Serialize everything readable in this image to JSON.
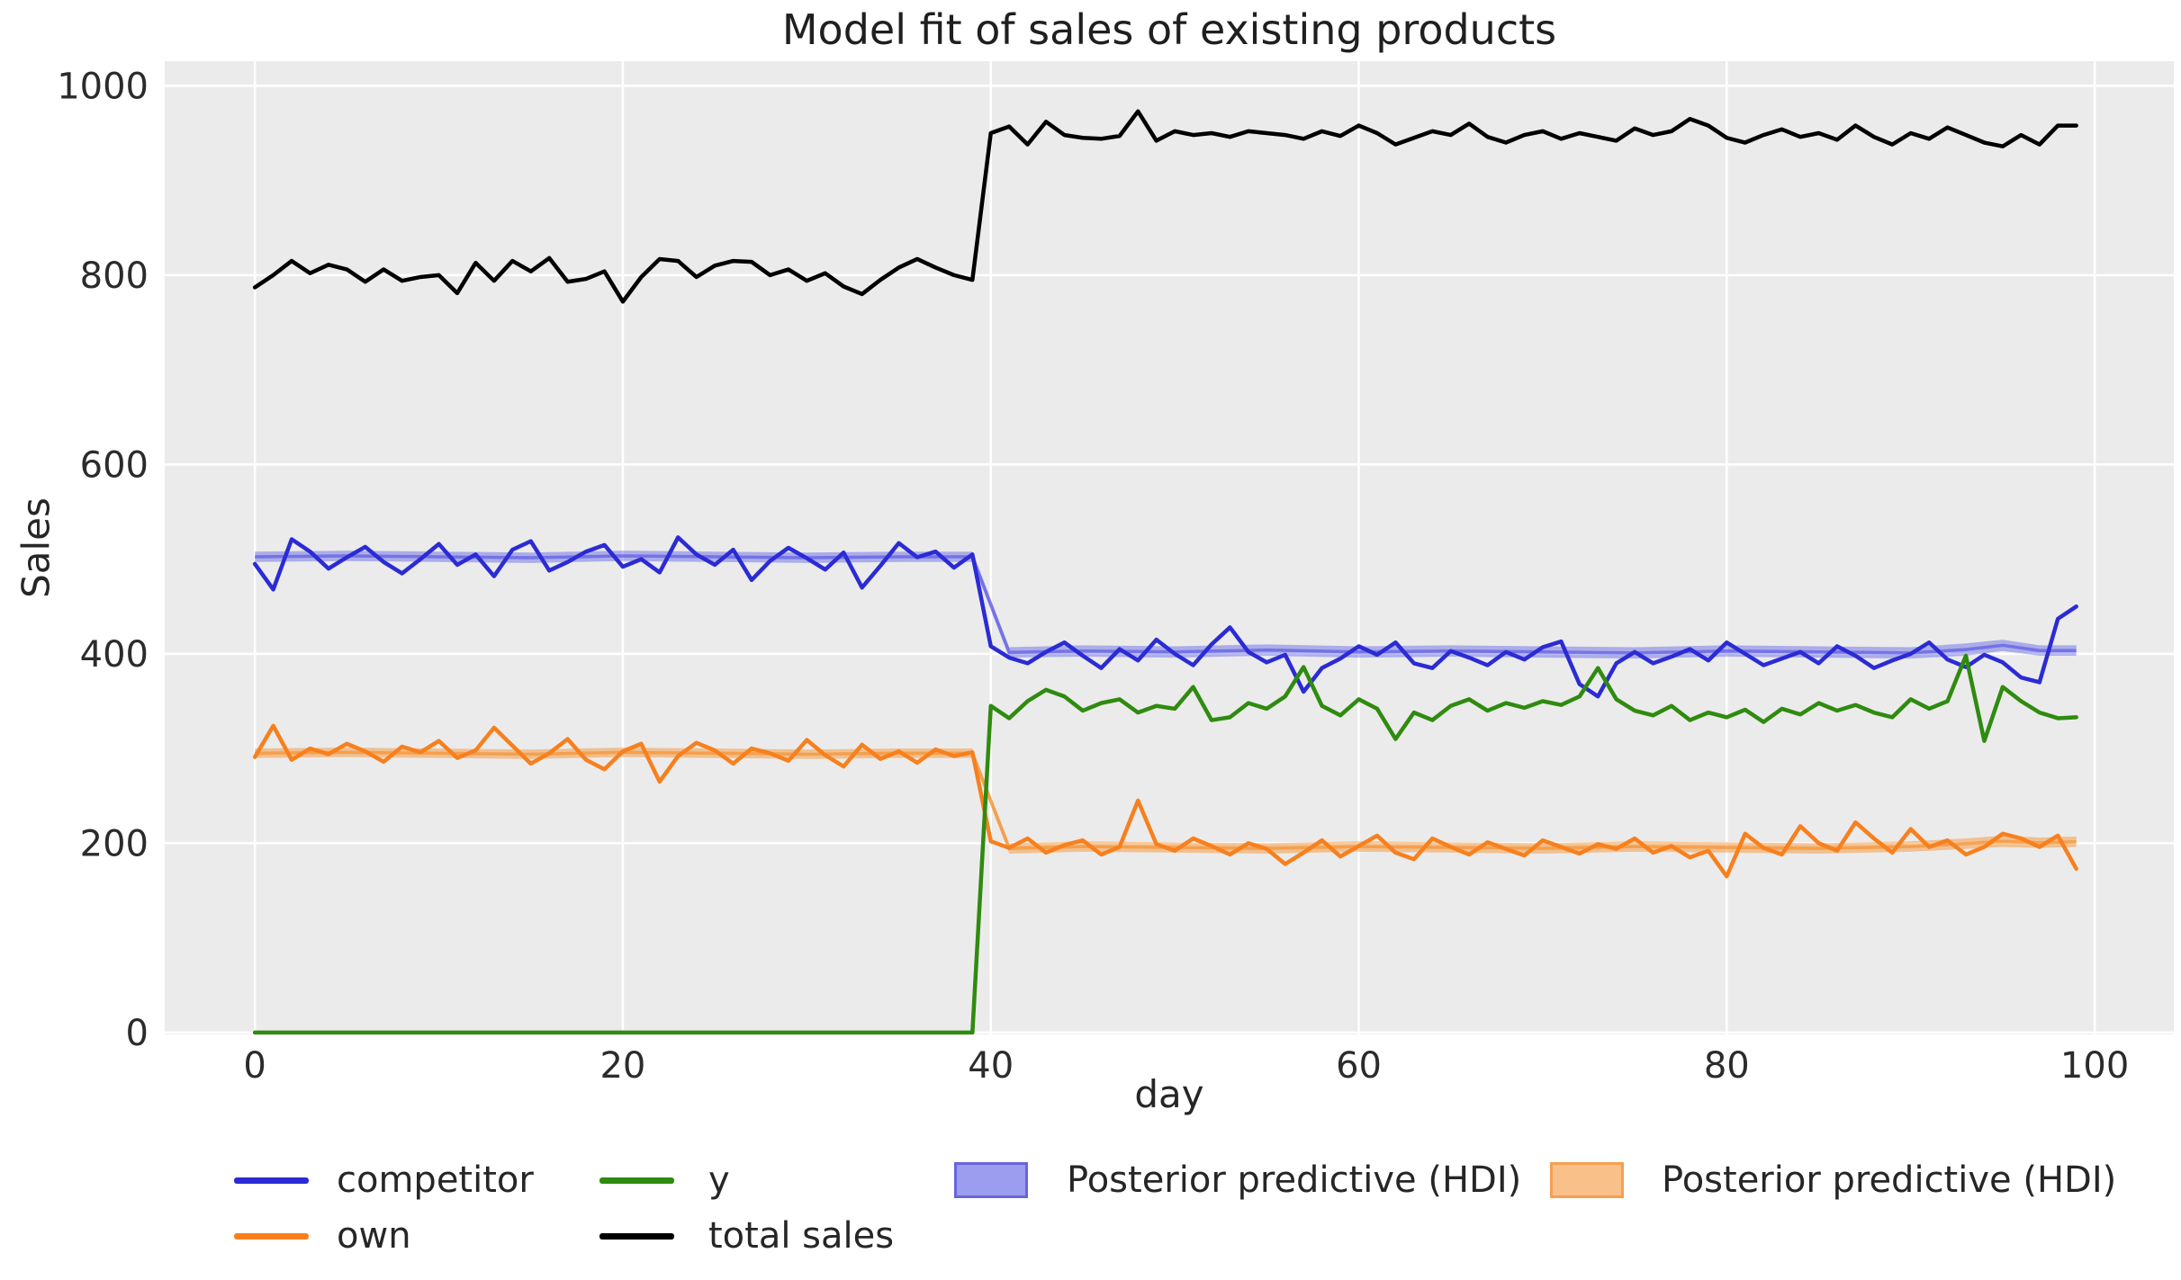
{
  "title": "Model fit of sales of existing products",
  "colors": {
    "figure_bg": "#ffffff",
    "plot_bg": "#ebebeb",
    "grid": "#ffffff",
    "text": "#262626",
    "competitor": "#2b2bd5",
    "own": "#f7801e",
    "y": "#2f8b0f",
    "total_sales": "#000000",
    "hdi_blue_fill": "rgba(70,70,230,0.38)",
    "hdi_blue_line": "rgba(70,70,230,0.55)",
    "hdi_orange_fill": "rgba(247,140,35,0.45)",
    "hdi_orange_line": "rgba(247,140,35,0.62)"
  },
  "legend": {
    "columns": [
      [
        {
          "label": "competitor",
          "swatch": "line",
          "color": "#2b2bd5"
        },
        {
          "label": "own",
          "swatch": "line",
          "color": "#f7801e"
        }
      ],
      [
        {
          "label": "y",
          "swatch": "line",
          "color": "#2f8b0f"
        },
        {
          "label": "total sales",
          "swatch": "line",
          "color": "#000000"
        }
      ],
      [
        {
          "label": "Posterior predictive (HDI)",
          "swatch": "patch",
          "color": "#9d9df0",
          "border": "#6666dd"
        }
      ],
      [
        {
          "label": "Posterior predictive (HDI)",
          "swatch": "patch",
          "color": "#f9c08a",
          "border": "#f59f51"
        }
      ]
    ]
  },
  "chart_data": {
    "type": "line",
    "title": "Model fit of sales of existing products",
    "xlabel": "day",
    "ylabel": "Sales",
    "xlim": [
      -4.9,
      104.3
    ],
    "ylim": [
      -2,
      1026
    ],
    "x_ticks": [
      0,
      20,
      40,
      60,
      80,
      100
    ],
    "y_ticks": [
      0,
      200,
      400,
      600,
      800,
      1000
    ],
    "grid": true,
    "legend_position": "below",
    "changepoint_day": 40,
    "days": [
      0,
      1,
      2,
      3,
      4,
      5,
      6,
      7,
      8,
      9,
      10,
      11,
      12,
      13,
      14,
      15,
      16,
      17,
      18,
      19,
      20,
      21,
      22,
      23,
      24,
      25,
      26,
      27,
      28,
      29,
      30,
      31,
      32,
      33,
      34,
      35,
      36,
      37,
      38,
      39,
      40,
      41,
      42,
      43,
      44,
      45,
      46,
      47,
      48,
      49,
      50,
      51,
      52,
      53,
      54,
      55,
      56,
      57,
      58,
      59,
      60,
      61,
      62,
      63,
      64,
      65,
      66,
      67,
      68,
      69,
      70,
      71,
      72,
      73,
      74,
      75,
      76,
      77,
      78,
      79,
      80,
      81,
      82,
      83,
      84,
      85,
      86,
      87,
      88,
      89,
      90,
      91,
      92,
      93,
      94,
      95,
      96,
      97,
      98,
      99
    ],
    "series": [
      {
        "name": "competitor",
        "color": "#2b2bd5",
        "values": [
          495,
          468,
          521,
          508,
          490,
          502,
          513,
          497,
          485,
          500,
          516,
          494,
          505,
          482,
          510,
          519,
          488,
          497,
          508,
          515,
          492,
          500,
          486,
          523,
          505,
          494,
          510,
          478,
          498,
          512,
          501,
          489,
          507,
          470,
          493,
          517,
          502,
          508,
          491,
          505,
          408,
          396,
          390,
          402,
          412,
          398,
          385,
          405,
          393,
          415,
          400,
          388,
          410,
          428,
          402,
          391,
          399,
          360,
          385,
          395,
          408,
          399,
          412,
          390,
          385,
          403,
          396,
          388,
          402,
          394,
          407,
          413,
          368,
          355,
          390,
          402,
          390,
          397,
          405,
          393,
          412,
          400,
          388,
          395,
          402,
          390,
          408,
          398,
          385,
          393,
          400,
          412,
          394,
          386,
          399,
          391,
          375,
          370,
          437,
          450
        ]
      },
      {
        "name": "own",
        "color": "#f7801e",
        "values": [
          291,
          324,
          288,
          300,
          294,
          305,
          297,
          286,
          302,
          296,
          308,
          290,
          298,
          322,
          303,
          284,
          295,
          310,
          288,
          278,
          297,
          305,
          265,
          292,
          306,
          298,
          284,
          300,
          295,
          287,
          309,
          293,
          281,
          304,
          289,
          297,
          285,
          299,
          292,
          296,
          202,
          195,
          205,
          190,
          198,
          203,
          188,
          196,
          245,
          199,
          192,
          205,
          197,
          188,
          200,
          194,
          178,
          190,
          203,
          186,
          197,
          208,
          190,
          183,
          205,
          196,
          188,
          201,
          194,
          187,
          203,
          196,
          189,
          199,
          194,
          205,
          190,
          197,
          185,
          192,
          165,
          210,
          195,
          188,
          218,
          200,
          192,
          222,
          205,
          190,
          215,
          196,
          203,
          188,
          196,
          210,
          205,
          196,
          208,
          173
        ]
      },
      {
        "name": "y",
        "color": "#2f8b0f",
        "values": [
          0,
          0,
          0,
          0,
          0,
          0,
          0,
          0,
          0,
          0,
          0,
          0,
          0,
          0,
          0,
          0,
          0,
          0,
          0,
          0,
          0,
          0,
          0,
          0,
          0,
          0,
          0,
          0,
          0,
          0,
          0,
          0,
          0,
          0,
          0,
          0,
          0,
          0,
          0,
          0,
          345,
          332,
          350,
          362,
          355,
          340,
          348,
          352,
          338,
          345,
          342,
          365,
          330,
          333,
          348,
          342,
          355,
          386,
          345,
          335,
          352,
          342,
          310,
          338,
          330,
          345,
          352,
          340,
          348,
          343,
          350,
          346,
          355,
          385,
          352,
          340,
          335,
          345,
          330,
          338,
          333,
          341,
          328,
          342,
          336,
          348,
          340,
          346,
          338,
          333,
          352,
          342,
          350,
          398,
          308,
          365,
          350,
          338,
          332,
          333
        ]
      },
      {
        "name": "total sales",
        "color": "#000000",
        "values": [
          787,
          800,
          815,
          802,
          811,
          806,
          793,
          806,
          794,
          798,
          800,
          781,
          813,
          794,
          815,
          804,
          818,
          793,
          796,
          804,
          772,
          798,
          817,
          815,
          798,
          810,
          815,
          814,
          800,
          806,
          794,
          802,
          788,
          780,
          795,
          808,
          817,
          808,
          800,
          795,
          950,
          957,
          938,
          962,
          948,
          945,
          944,
          947,
          973,
          942,
          952,
          948,
          950,
          946,
          952,
          950,
          948,
          944,
          952,
          947,
          958,
          950,
          938,
          945,
          952,
          948,
          960,
          946,
          940,
          948,
          952,
          944,
          950,
          946,
          942,
          955,
          948,
          952,
          965,
          958,
          945,
          940,
          948,
          954,
          946,
          950,
          943,
          958,
          946,
          938,
          950,
          944,
          956,
          948,
          940,
          936,
          948,
          938,
          958,
          958
        ]
      }
    ],
    "bands": [
      {
        "name": "Posterior predictive (HDI)",
        "series": "competitor",
        "fill": "rgba(70,70,230,0.38)",
        "line": "rgba(70,70,230,0.55)",
        "x": [
          0,
          5,
          10,
          15,
          20,
          25,
          30,
          35,
          39,
          41,
          45,
          50,
          55,
          60,
          65,
          70,
          75,
          80,
          85,
          90,
          93,
          95,
          97,
          99
        ],
        "lo": [
          497,
          498,
          497,
          496,
          498,
          497,
          496,
          497,
          497,
          396,
          397,
          396,
          398,
          396,
          397,
          396,
          395,
          397,
          396,
          395,
          398,
          403,
          398,
          398
        ],
        "hi": [
          508,
          509,
          508,
          507,
          509,
          508,
          507,
          508,
          508,
          407,
          409,
          408,
          410,
          408,
          409,
          408,
          407,
          409,
          408,
          407,
          411,
          415,
          409,
          409
        ]
      },
      {
        "name": "Posterior predictive (HDI)",
        "series": "own",
        "fill": "rgba(247,140,35,0.45)",
        "line": "rgba(247,140,35,0.62)",
        "x": [
          0,
          5,
          10,
          15,
          20,
          25,
          30,
          35,
          39,
          41,
          45,
          50,
          55,
          60,
          65,
          70,
          75,
          80,
          85,
          90,
          93,
          95,
          97,
          99
        ],
        "lo": [
          290,
          291,
          290,
          289,
          291,
          290,
          289,
          290,
          290,
          189,
          191,
          190,
          189,
          191,
          190,
          189,
          191,
          190,
          189,
          191,
          194,
          196,
          195,
          196
        ],
        "hi": [
          300,
          301,
          300,
          299,
          301,
          300,
          299,
          300,
          300,
          200,
          202,
          201,
          200,
          202,
          201,
          200,
          202,
          201,
          200,
          202,
          205,
          208,
          206,
          207
        ]
      }
    ]
  }
}
